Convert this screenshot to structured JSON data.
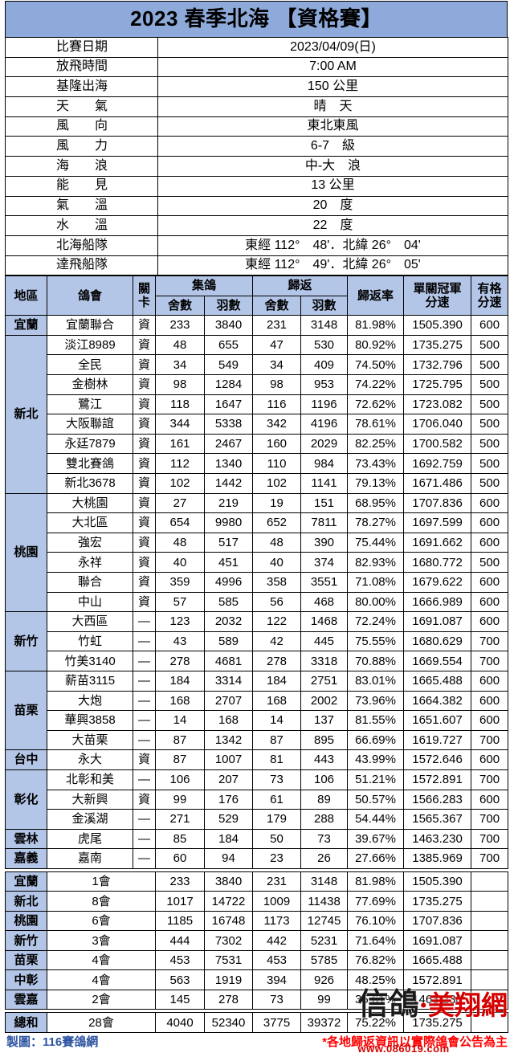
{
  "title": "2023 春季北海 【資格賽】",
  "info": [
    {
      "label": "比賽日期",
      "value": "2023/04/09(日)"
    },
    {
      "label": "放飛時間",
      "value": "7:00 AM"
    },
    {
      "label": "基隆出海",
      "value": "150 公里"
    },
    {
      "label": "天　　氣",
      "value": "晴　天"
    },
    {
      "label": "風　　向",
      "value": "東北東風"
    },
    {
      "label": "風　　力",
      "value": "6-7　級"
    },
    {
      "label": "海　　浪",
      "value": "中-大　浪"
    },
    {
      "label": "能　　見",
      "value": "13 公里"
    },
    {
      "label": "氣　　溫",
      "value": "20　度"
    },
    {
      "label": "水　　溫",
      "value": "22　度"
    },
    {
      "label": "北海船隊",
      "value": "東經 112°　48'．北緯 26°　04'"
    },
    {
      "label": "達飛船隊",
      "value": "東經 112°　49'．北緯 26°　05'"
    }
  ],
  "columns": {
    "region": "地區",
    "club": "鴿會",
    "gate": "關卡",
    "collected": "集鴿",
    "returned": "歸返",
    "lofts": "舍數",
    "birds": "羽數",
    "rate": "歸返率",
    "speed": "單關冠軍分速",
    "qual": "有格分速"
  },
  "regions": [
    {
      "name": "宜蘭",
      "clubs": [
        [
          "宜蘭聯合",
          "資",
          "233",
          "3840",
          "231",
          "3148",
          "81.98%",
          "1505.390",
          "600"
        ]
      ]
    },
    {
      "name": "新北",
      "clubs": [
        [
          "淡江8989",
          "資",
          "48",
          "655",
          "47",
          "530",
          "80.92%",
          "1735.275",
          "500"
        ],
        [
          "全民",
          "資",
          "34",
          "549",
          "34",
          "409",
          "74.50%",
          "1732.796",
          "500"
        ],
        [
          "金樹林",
          "資",
          "98",
          "1284",
          "98",
          "953",
          "74.22%",
          "1725.795",
          "500"
        ],
        [
          "鷺江",
          "資",
          "118",
          "1647",
          "116",
          "1196",
          "72.62%",
          "1723.082",
          "500"
        ],
        [
          "大阪聯誼",
          "資",
          "344",
          "5338",
          "342",
          "4196",
          "78.61%",
          "1706.040",
          "500"
        ],
        [
          "永廷7879",
          "資",
          "161",
          "2467",
          "160",
          "2029",
          "82.25%",
          "1700.582",
          "500"
        ],
        [
          "雙北賽鴿",
          "資",
          "112",
          "1340",
          "110",
          "984",
          "73.43%",
          "1692.759",
          "500"
        ],
        [
          "新北3678",
          "資",
          "102",
          "1442",
          "102",
          "1141",
          "79.13%",
          "1671.486",
          "500"
        ]
      ]
    },
    {
      "name": "桃園",
      "clubs": [
        [
          "大桃園",
          "資",
          "27",
          "219",
          "19",
          "151",
          "68.95%",
          "1707.836",
          "600"
        ],
        [
          "大北區",
          "資",
          "654",
          "9980",
          "652",
          "7811",
          "78.27%",
          "1697.599",
          "600"
        ],
        [
          "強宏",
          "資",
          "48",
          "517",
          "48",
          "390",
          "75.44%",
          "1691.662",
          "600"
        ],
        [
          "永祥",
          "資",
          "40",
          "451",
          "40",
          "374",
          "82.93%",
          "1680.772",
          "500"
        ],
        [
          "聯合",
          "資",
          "359",
          "4996",
          "358",
          "3551",
          "71.08%",
          "1679.622",
          "600"
        ],
        [
          "中山",
          "資",
          "57",
          "585",
          "56",
          "468",
          "80.00%",
          "1666.989",
          "600"
        ]
      ]
    },
    {
      "name": "新竹",
      "clubs": [
        [
          "大西區",
          "—",
          "123",
          "2032",
          "122",
          "1468",
          "72.24%",
          "1691.087",
          "600"
        ],
        [
          "竹虹",
          "—",
          "43",
          "589",
          "42",
          "445",
          "75.55%",
          "1680.629",
          "700"
        ],
        [
          "竹美3140",
          "—",
          "278",
          "4681",
          "278",
          "3318",
          "70.88%",
          "1669.554",
          "700"
        ]
      ]
    },
    {
      "name": "苗栗",
      "clubs": [
        [
          "薪苗3115",
          "—",
          "184",
          "3314",
          "184",
          "2751",
          "83.01%",
          "1665.488",
          "600"
        ],
        [
          "大炮",
          "—",
          "168",
          "2707",
          "168",
          "2002",
          "73.96%",
          "1664.382",
          "600"
        ],
        [
          "華興3858",
          "—",
          "14",
          "168",
          "14",
          "137",
          "81.55%",
          "1651.607",
          "600"
        ],
        [
          "大苗栗",
          "—",
          "87",
          "1342",
          "87",
          "895",
          "66.69%",
          "1619.727",
          "700"
        ]
      ]
    },
    {
      "name": "台中",
      "clubs": [
        [
          "永大",
          "資",
          "87",
          "1007",
          "81",
          "443",
          "43.99%",
          "1572.646",
          "600"
        ]
      ]
    },
    {
      "name": "彰化",
      "clubs": [
        [
          "北彰和美",
          "—",
          "106",
          "207",
          "73",
          "106",
          "51.21%",
          "1572.891",
          "700"
        ],
        [
          "大新興",
          "資",
          "99",
          "176",
          "61",
          "89",
          "50.57%",
          "1566.283",
          "600"
        ],
        [
          "金溪湖",
          "—",
          "271",
          "529",
          "179",
          "288",
          "54.44%",
          "1565.367",
          "700"
        ]
      ]
    },
    {
      "name": "雲林",
      "clubs": [
        [
          "虎尾",
          "—",
          "85",
          "184",
          "50",
          "73",
          "39.67%",
          "1463.230",
          "700"
        ]
      ]
    },
    {
      "name": "嘉義",
      "clubs": [
        [
          "嘉南",
          "—",
          "60",
          "94",
          "23",
          "26",
          "27.66%",
          "1385.969",
          "700"
        ]
      ]
    }
  ],
  "summary": [
    [
      "宜蘭",
      "1會",
      "233",
      "3840",
      "231",
      "3148",
      "81.98%",
      "1505.390"
    ],
    [
      "新北",
      "8會",
      "1017",
      "14722",
      "1009",
      "11438",
      "77.69%",
      "1735.275"
    ],
    [
      "桃園",
      "6會",
      "1185",
      "16748",
      "1173",
      "12745",
      "76.10%",
      "1707.836"
    ],
    [
      "新竹",
      "3會",
      "444",
      "7302",
      "442",
      "5231",
      "71.64%",
      "1691.087"
    ],
    [
      "苗栗",
      "4會",
      "453",
      "7531",
      "453",
      "5785",
      "76.82%",
      "1665.488"
    ],
    [
      "中彰",
      "4會",
      "563",
      "1919",
      "394",
      "926",
      "48.25%",
      "1572.891"
    ],
    [
      "雲嘉",
      "2會",
      "145",
      "278",
      "73",
      "99",
      "35.61%",
      "1463.230"
    ]
  ],
  "total": [
    "總和",
    "28會",
    "4040",
    "52340",
    "3775",
    "39372",
    "75.22%",
    "1735.275"
  ],
  "footer": {
    "credit": "製圖：116賽鴿網",
    "note": "*各地歸返資訊以實際鴿會公告為主"
  },
  "watermark": {
    "brand_a": "信鴿",
    "brand_b": "·美翔網",
    "url": "www.086019.com"
  },
  "colors": {
    "title_bg": "#8eaadb",
    "header_bg": "#b4c6e7",
    "region_bg": "#b4c6e7",
    "credit_text": "#2e54a1",
    "note_text": "#ff0000",
    "watermark_dark": "#1a1a1a",
    "watermark_red": "#d40000"
  }
}
